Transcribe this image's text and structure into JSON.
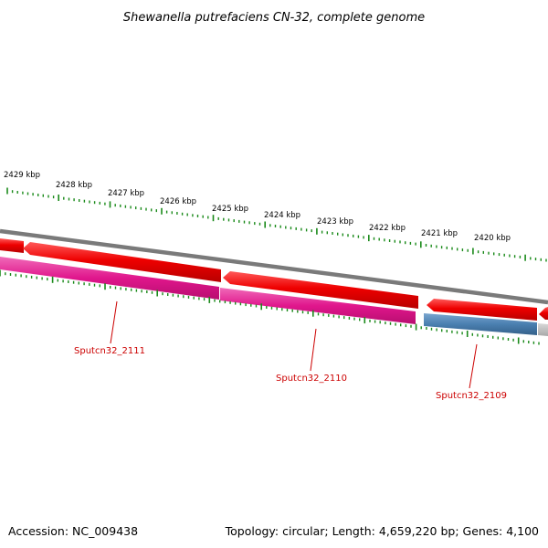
{
  "title": "Shewanella putrefaciens CN-32, complete genome",
  "footer": {
    "accession": "Accession: NC_009438",
    "topology": "Topology: circular; Length: 4,659,220 bp; Genes: 4,100"
  },
  "scale_labels": [
    "2429 kbp",
    "2428 kbp",
    "2427 kbp",
    "2426 kbp",
    "2425 kbp",
    "2424 kbp",
    "2423 kbp",
    "2422 kbp",
    "2421 kbp",
    "2420 kbp"
  ],
  "gene_labels": [
    "Sputcn32_2111",
    "Sputcn32_2110",
    "Sputcn32_2109"
  ],
  "colors": {
    "background": "#ffffff",
    "backbone": "#808080",
    "forward_cds": "#ee0000",
    "gene_track": "#e0168c",
    "other_track": "#4a7fb0",
    "tick": "#1a8a1a",
    "label": "#cc0000"
  }
}
